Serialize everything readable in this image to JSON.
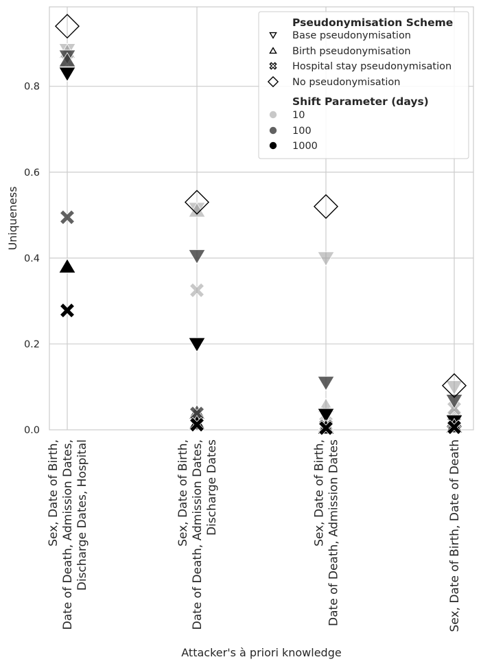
{
  "chart_data": {
    "type": "scatter",
    "title": "",
    "xlabel": "Attacker's à priori knowledge",
    "ylabel": "Uniqueness",
    "ylim": [
      0,
      0.985
    ],
    "yticks": [
      0.0,
      0.2,
      0.4,
      0.6,
      0.8
    ],
    "grid": true,
    "legend_position": "top-right",
    "categories": [
      [
        "Sex, Date of Birth,",
        "Date of Death, Admission Dates,",
        "Discharge Dates, Hospital"
      ],
      [
        "Sex, Date of Birth,",
        "Date of Death, Admission Dates,",
        "Discharge Dates"
      ],
      [
        "Sex, Date of Birth,",
        "Date of Death, Admission Dates"
      ],
      [
        "Sex, Date of Birth, Date of Death"
      ]
    ],
    "legend": {
      "scheme_title": "Pseudonymisation Scheme",
      "schemes": [
        {
          "label": "Base pseudonymisation",
          "marker": "triangle-down"
        },
        {
          "label": "Birth pseudonymisation",
          "marker": "triangle-up"
        },
        {
          "label": "Hospital stay pseudonymisation",
          "marker": "x"
        },
        {
          "label": "No pseudonymisation",
          "marker": "diamond"
        }
      ],
      "shift_title": "Shift Parameter (days)",
      "shifts": [
        {
          "label": "10",
          "color": "#9a9a9a",
          "opacity": 0.55
        },
        {
          "label": "100",
          "color": "#3a3a3a",
          "opacity": 0.8
        },
        {
          "label": "1000",
          "color": "#000000",
          "opacity": 1.0
        }
      ]
    },
    "points": [
      {
        "cat": 0,
        "y": 0.94,
        "marker": "diamond",
        "shift": null
      },
      {
        "cat": 0,
        "y": 0.885,
        "marker": "triangle-down",
        "shift": 0
      },
      {
        "cat": 0,
        "y": 0.87,
        "marker": "triangle-down",
        "shift": 1
      },
      {
        "cat": 0,
        "y": 0.83,
        "marker": "triangle-down",
        "shift": 2
      },
      {
        "cat": 0,
        "y": 0.88,
        "marker": "triangle-up",
        "shift": 0
      },
      {
        "cat": 0,
        "y": 0.86,
        "marker": "triangle-up",
        "shift": 1
      },
      {
        "cat": 0,
        "y": 0.38,
        "marker": "triangle-up",
        "shift": 2
      },
      {
        "cat": 0,
        "y": 0.86,
        "marker": "x",
        "shift": 0
      },
      {
        "cat": 0,
        "y": 0.495,
        "marker": "x",
        "shift": 1
      },
      {
        "cat": 0,
        "y": 0.278,
        "marker": "x",
        "shift": 2
      },
      {
        "cat": 1,
        "y": 0.53,
        "marker": "diamond",
        "shift": null
      },
      {
        "cat": 1,
        "y": 0.515,
        "marker": "triangle-down",
        "shift": 0
      },
      {
        "cat": 1,
        "y": 0.405,
        "marker": "triangle-down",
        "shift": 1
      },
      {
        "cat": 1,
        "y": 0.2,
        "marker": "triangle-down",
        "shift": 2
      },
      {
        "cat": 1,
        "y": 0.51,
        "marker": "triangle-up",
        "shift": 0
      },
      {
        "cat": 1,
        "y": 0.04,
        "marker": "triangle-up",
        "shift": 1
      },
      {
        "cat": 1,
        "y": 0.015,
        "marker": "triangle-up",
        "shift": 2
      },
      {
        "cat": 1,
        "y": 0.325,
        "marker": "x",
        "shift": 0
      },
      {
        "cat": 1,
        "y": 0.038,
        "marker": "x",
        "shift": 1
      },
      {
        "cat": 1,
        "y": 0.012,
        "marker": "x",
        "shift": 2
      },
      {
        "cat": 2,
        "y": 0.52,
        "marker": "diamond",
        "shift": null
      },
      {
        "cat": 2,
        "y": 0.4,
        "marker": "triangle-down",
        "shift": 0
      },
      {
        "cat": 2,
        "y": 0.11,
        "marker": "triangle-down",
        "shift": 1
      },
      {
        "cat": 2,
        "y": 0.035,
        "marker": "triangle-down",
        "shift": 2
      },
      {
        "cat": 2,
        "y": 0.055,
        "marker": "triangle-up",
        "shift": 0
      },
      {
        "cat": 2,
        "y": 0.01,
        "marker": "triangle-up",
        "shift": 1
      },
      {
        "cat": 2,
        "y": 0.005,
        "marker": "triangle-up",
        "shift": 2
      },
      {
        "cat": 2,
        "y": 0.035,
        "marker": "x",
        "shift": 0
      },
      {
        "cat": 2,
        "y": 0.008,
        "marker": "x",
        "shift": 1
      },
      {
        "cat": 2,
        "y": 0.004,
        "marker": "x",
        "shift": 2
      },
      {
        "cat": 3,
        "y": 0.103,
        "marker": "diamond",
        "shift": null
      },
      {
        "cat": 3,
        "y": 0.1,
        "marker": "triangle-down",
        "shift": 0
      },
      {
        "cat": 3,
        "y": 0.068,
        "marker": "triangle-down",
        "shift": 1
      },
      {
        "cat": 3,
        "y": 0.02,
        "marker": "triangle-down",
        "shift": 2
      },
      {
        "cat": 3,
        "y": 0.045,
        "marker": "triangle-up",
        "shift": 0
      },
      {
        "cat": 3,
        "y": 0.02,
        "marker": "triangle-up",
        "shift": 1
      },
      {
        "cat": 3,
        "y": 0.008,
        "marker": "triangle-up",
        "shift": 2
      },
      {
        "cat": 3,
        "y": 0.05,
        "marker": "x",
        "shift": 0
      },
      {
        "cat": 3,
        "y": 0.015,
        "marker": "x",
        "shift": 1
      },
      {
        "cat": 3,
        "y": 0.006,
        "marker": "x",
        "shift": 2
      }
    ]
  }
}
